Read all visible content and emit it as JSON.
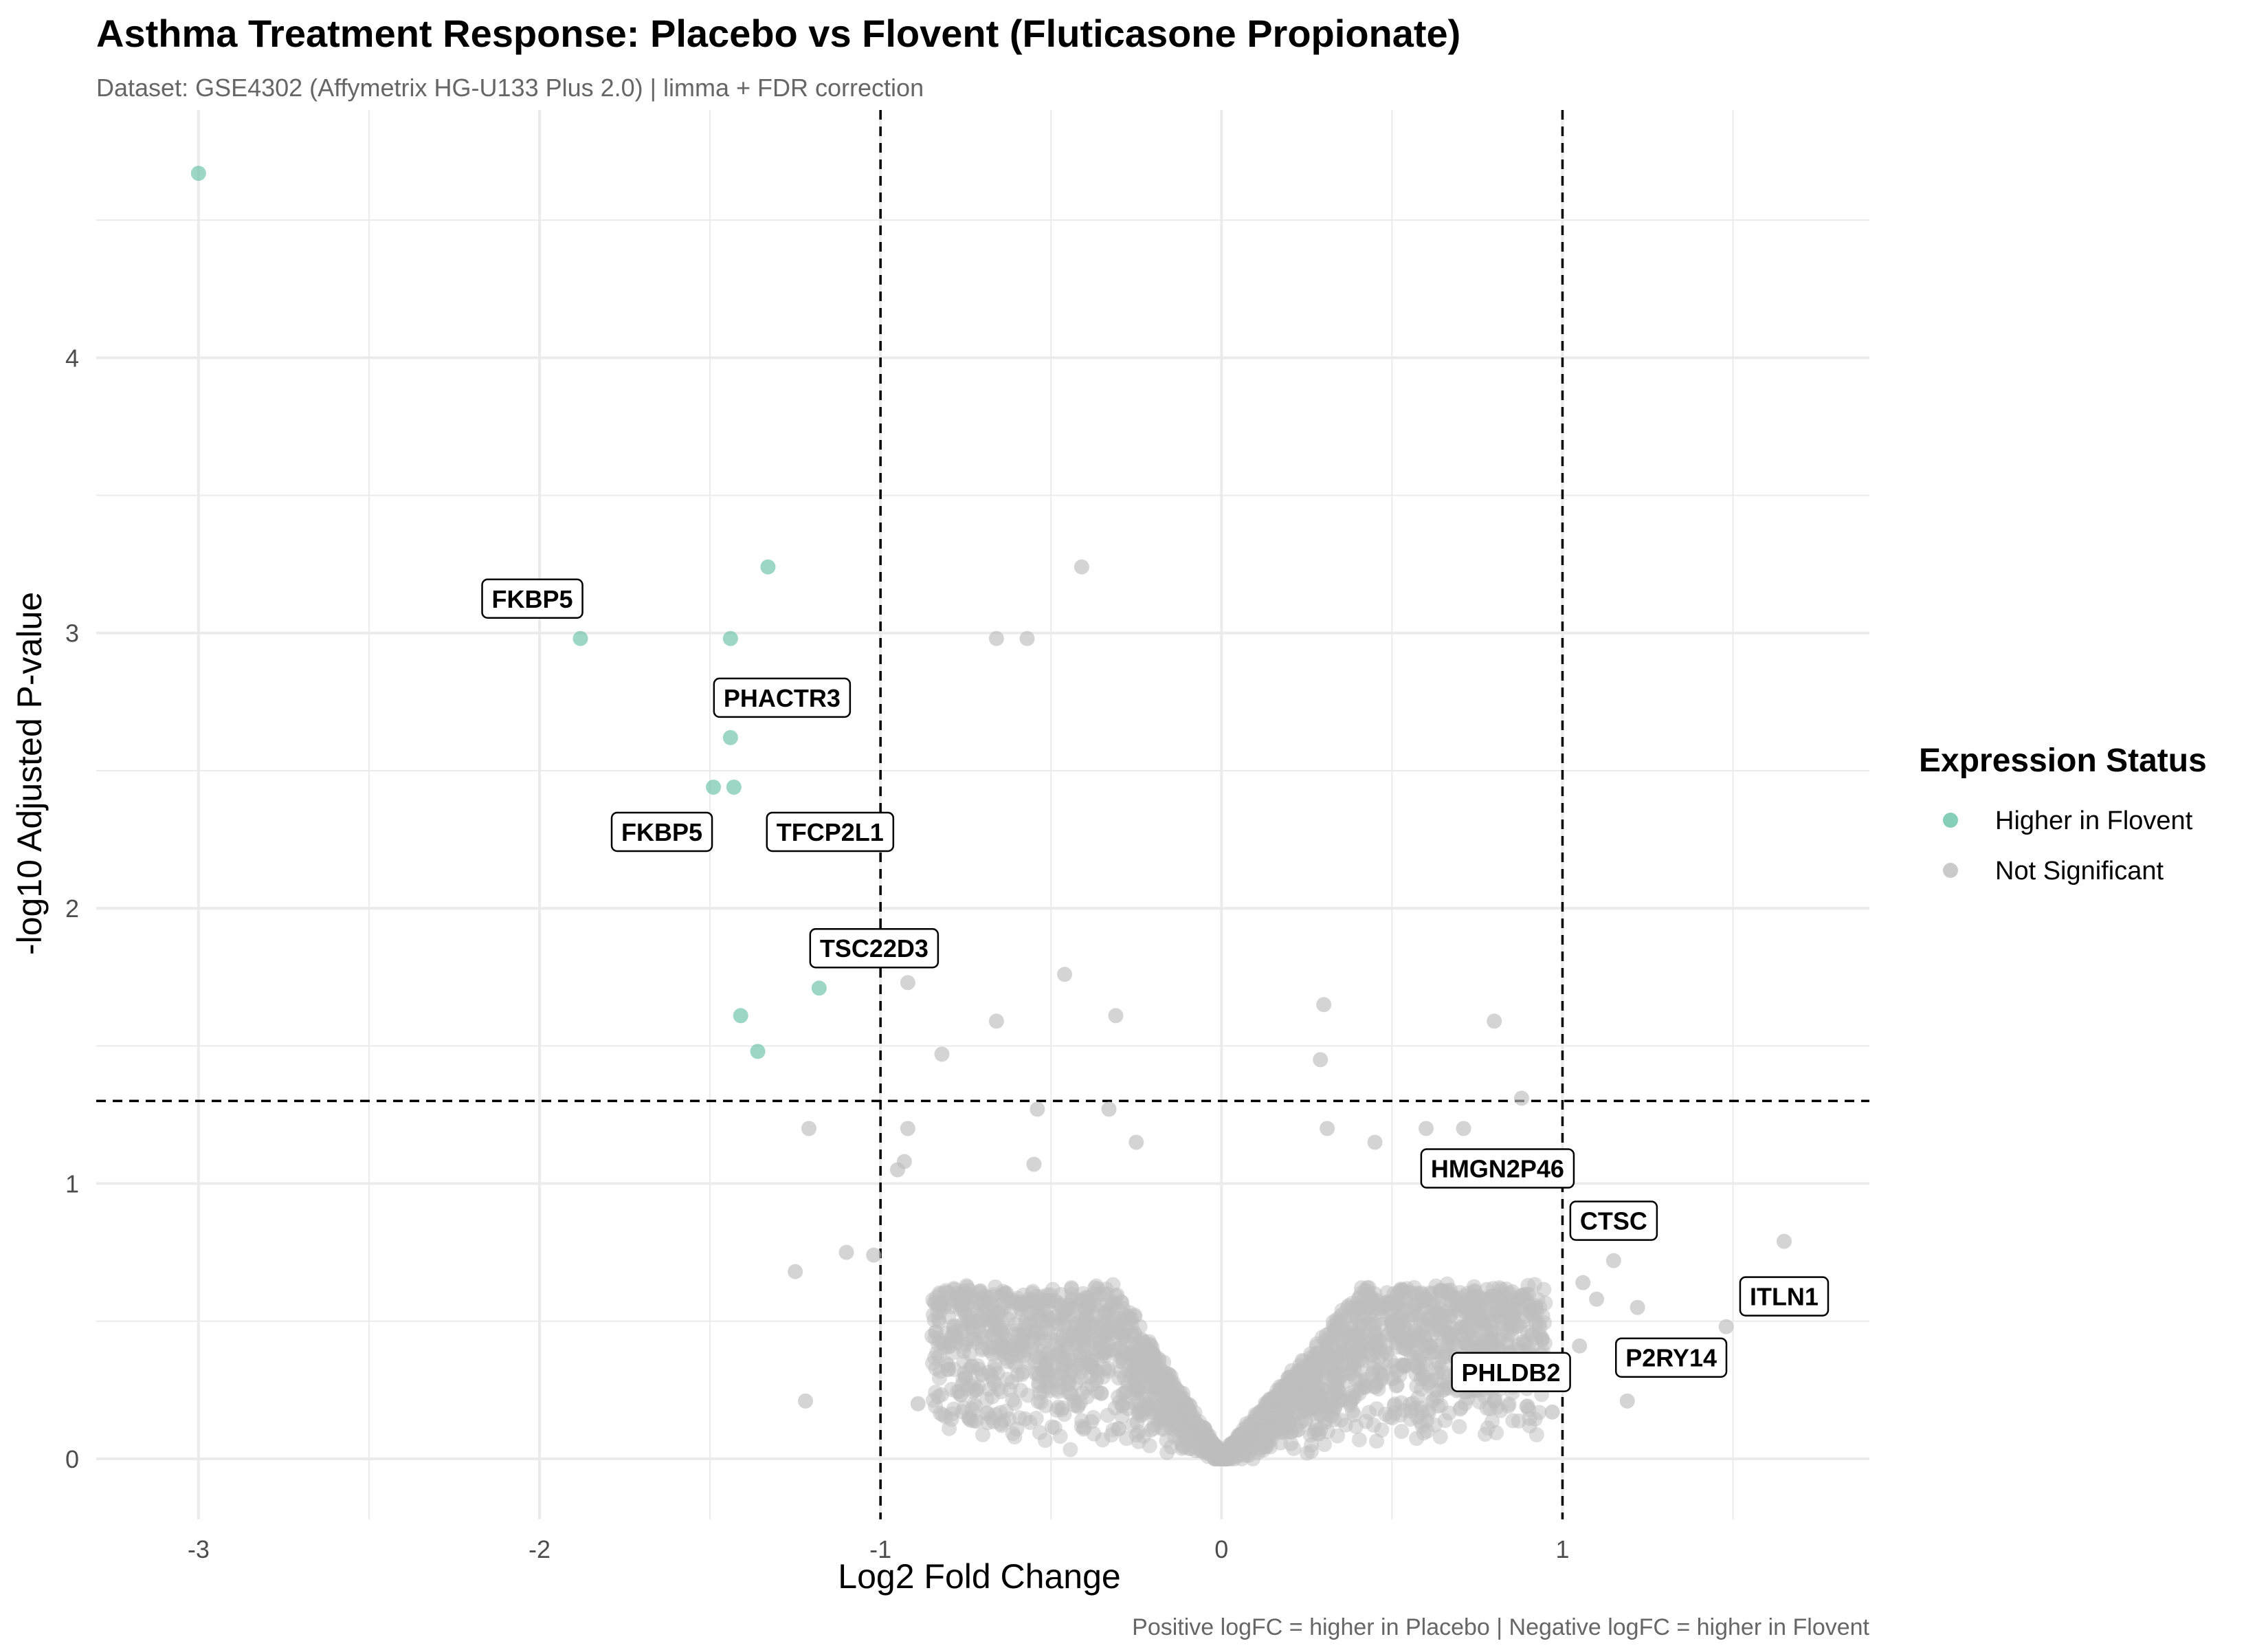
{
  "chart_data": {
    "type": "scatter",
    "title": "Asthma Treatment Response: Placebo vs Flovent (Fluticasone Propionate)",
    "subtitle": "Dataset: GSE4302 (Affymetrix HG-U133 Plus 2.0)  |  limma + FDR correction",
    "caption": "Positive logFC = higher in Placebo  |  Negative logFC = higher in Flovent",
    "xlabel": "Log2 Fold Change",
    "ylabel": "-log10 Adjusted P-value",
    "xlim": [
      -3.3,
      1.9
    ],
    "ylim": [
      -0.22,
      4.9
    ],
    "x_ticks": [
      -3,
      -2,
      -1,
      0,
      1
    ],
    "y_ticks": [
      0,
      1,
      2,
      3,
      4
    ],
    "thresholds": {
      "logfc": [
        -1,
        1
      ],
      "neg_log10_padj": 1.3
    },
    "grid": true,
    "legend": {
      "title": "Expression Status",
      "position": "right",
      "entries": [
        {
          "label": "Higher in Flovent",
          "color": "#66c2a5"
        },
        {
          "label": "Not Significant",
          "color": "#bdbdbd"
        }
      ]
    },
    "series": [
      {
        "name": "Higher in Flovent",
        "color": "#66c2a5",
        "points": [
          [
            -3.0,
            4.67
          ],
          [
            -1.88,
            2.98
          ],
          [
            -1.44,
            2.98
          ],
          [
            -1.33,
            3.24
          ],
          [
            -1.44,
            2.62
          ],
          [
            -1.49,
            2.44
          ],
          [
            -1.43,
            2.44
          ],
          [
            -1.18,
            1.71
          ],
          [
            -1.41,
            1.61
          ],
          [
            -1.36,
            1.48
          ]
        ]
      },
      {
        "name": "Not Significant",
        "color": "#bdbdbd",
        "points": [
          [
            -0.41,
            3.24
          ],
          [
            -0.66,
            2.98
          ],
          [
            -0.57,
            2.98
          ],
          [
            -0.46,
            1.76
          ],
          [
            -0.92,
            1.73
          ],
          [
            -0.31,
            1.61
          ],
          [
            -0.66,
            1.59
          ],
          [
            -0.82,
            1.47
          ],
          [
            0.3,
            1.65
          ],
          [
            0.29,
            1.45
          ],
          [
            0.8,
            1.59
          ],
          [
            0.88,
            1.31
          ],
          [
            -1.21,
            1.2
          ],
          [
            -1.25,
            0.68
          ],
          [
            -1.22,
            0.21
          ],
          [
            -1.1,
            0.75
          ],
          [
            -1.02,
            0.74
          ],
          [
            -0.92,
            1.2
          ],
          [
            -0.95,
            1.05
          ],
          [
            -0.93,
            1.08
          ],
          [
            -0.89,
            0.2
          ],
          [
            -0.74,
            0.15
          ],
          [
            -0.54,
            1.27
          ],
          [
            -0.55,
            1.07
          ],
          [
            -0.25,
            1.15
          ],
          [
            -0.33,
            1.27
          ],
          [
            0.31,
            1.2
          ],
          [
            0.45,
            1.15
          ],
          [
            0.6,
            1.2
          ],
          [
            0.71,
            1.2
          ],
          [
            0.78,
            1.08
          ],
          [
            1.15,
            0.72
          ],
          [
            1.06,
            0.64
          ],
          [
            1.1,
            0.58
          ],
          [
            1.22,
            0.55
          ],
          [
            1.48,
            0.48
          ],
          [
            1.65,
            0.79
          ],
          [
            1.19,
            0.21
          ],
          [
            0.97,
            0.17
          ],
          [
            1.05,
            0.41
          ],
          [
            0.8,
            0.21
          ],
          [
            0.65,
            0.25
          ]
        ]
      }
    ],
    "annotations": [
      {
        "text": "FKBP5",
        "x": -1.88,
        "y": 2.98
      },
      {
        "text": "PHACTR3",
        "x": -1.44,
        "y": 2.62
      },
      {
        "text": "FKBP5",
        "x": -1.49,
        "y": 2.44
      },
      {
        "text": "TFCP2L1",
        "x": -1.43,
        "y": 2.44
      },
      {
        "text": "TSC22D3",
        "x": -1.18,
        "y": 1.71
      },
      {
        "text": "HMGN2P46",
        "x": 0.88,
        "y": 0.95
      },
      {
        "text": "CTSC",
        "x": 1.15,
        "y": 0.72
      },
      {
        "text": "ITLN1",
        "x": 1.65,
        "y": 0.79
      },
      {
        "text": "P2RY14",
        "x": 1.48,
        "y": 0.48
      },
      {
        "text": "PHLDB2",
        "x": 0.97,
        "y": 0.42
      }
    ]
  }
}
